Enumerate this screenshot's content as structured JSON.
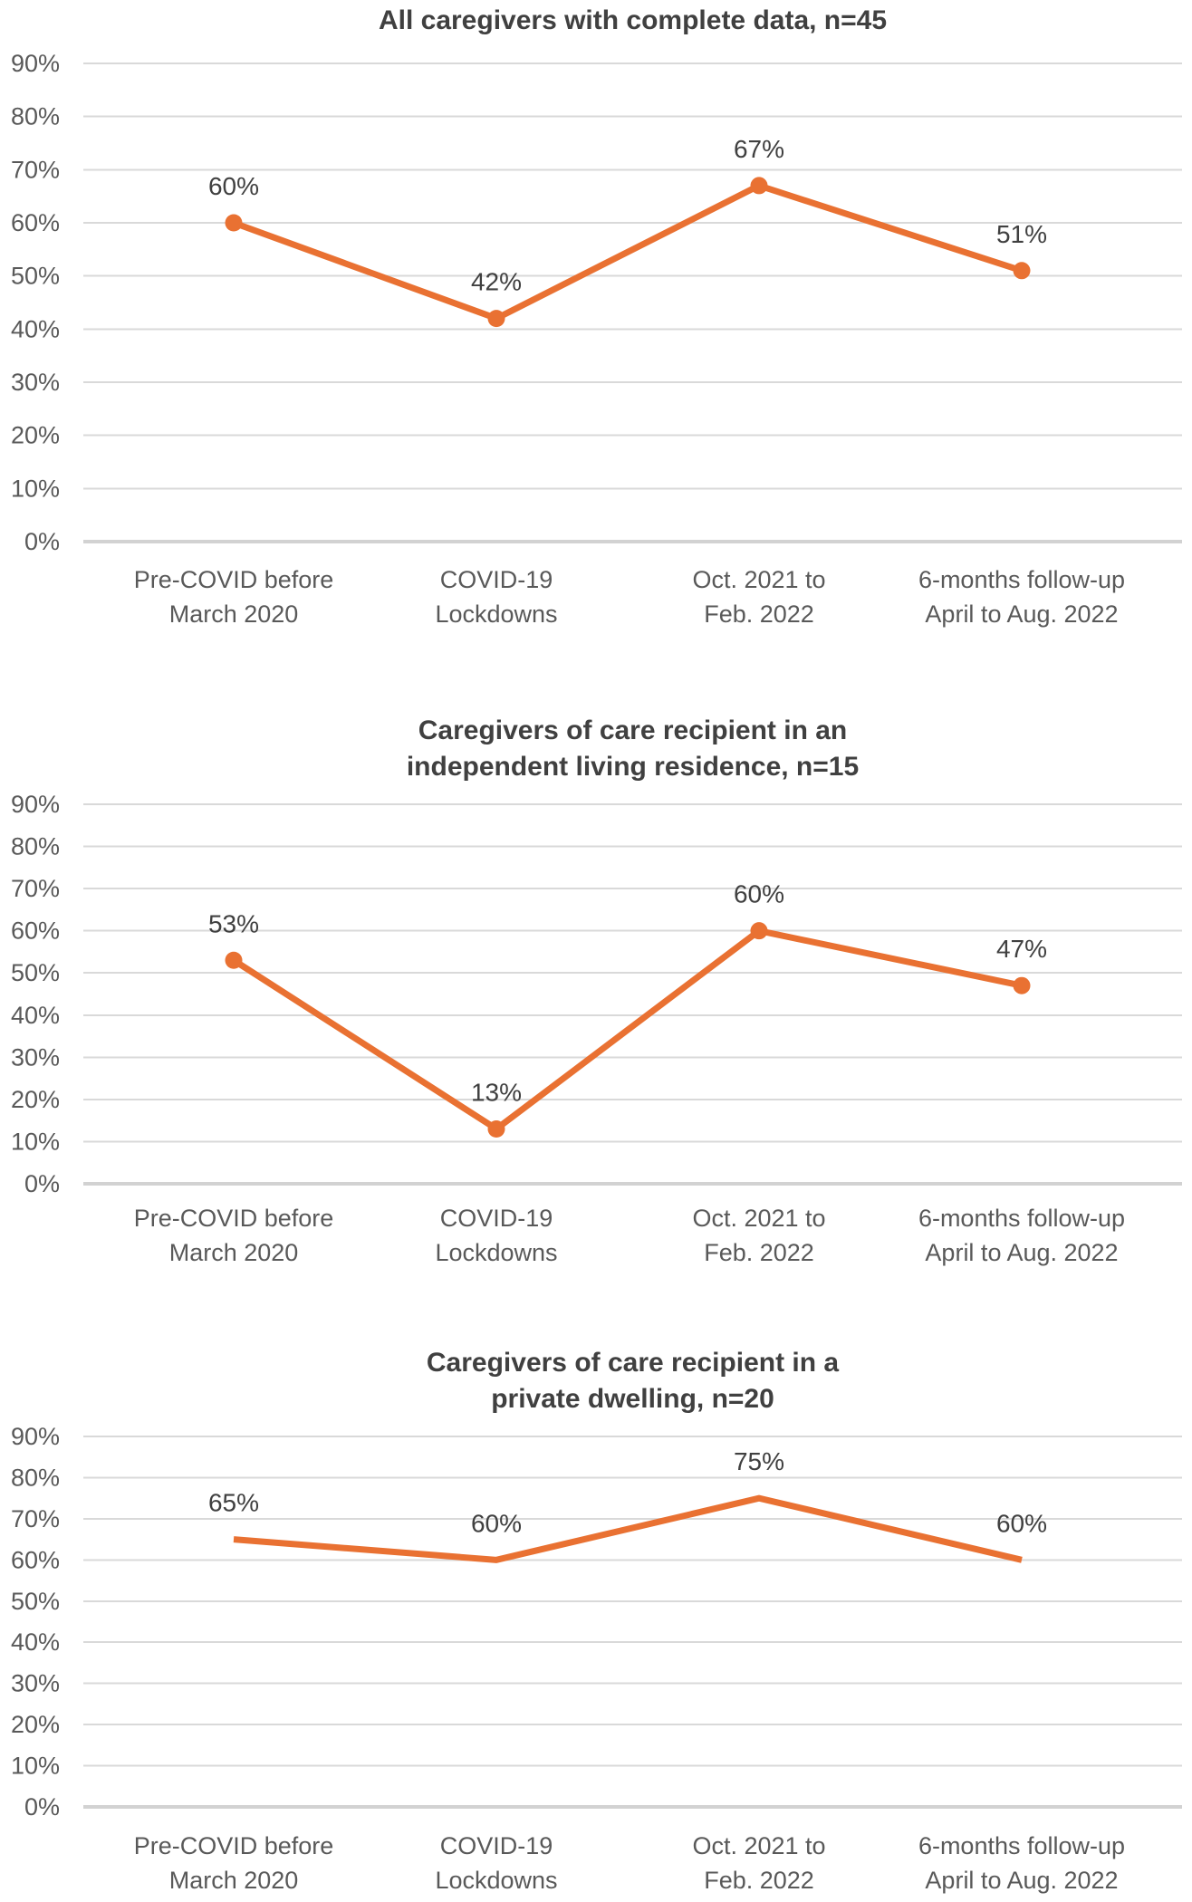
{
  "colors": {
    "series_orange": "#E97132",
    "gridline": "#D9D9D9",
    "axis_line": "#D2D2D2",
    "title_text": "#404040",
    "tick_text": "#595959",
    "data_label_text": "#404040",
    "background": "#FFFFFF"
  },
  "chart_data": [
    {
      "type": "line",
      "title": "All caregivers with complete data, n=45",
      "title_lines": [
        "All caregivers with complete data, n=45"
      ],
      "categories": [
        "Pre-COVID before March 2020",
        "COVID-19 Lockdowns",
        "Oct. 2021 to Feb. 2022",
        "6-months follow-up April to Aug. 2022"
      ],
      "category_lines": [
        [
          "Pre-COVID before",
          "March 2020"
        ],
        [
          "COVID-19",
          "Lockdowns"
        ],
        [
          "Oct. 2021 to",
          "Feb. 2022"
        ],
        [
          "6-months follow-up",
          "April to Aug. 2022"
        ]
      ],
      "values": [
        60,
        42,
        67,
        51
      ],
      "data_labels": [
        "60%",
        "42%",
        "67%",
        "51%"
      ],
      "y_ticks": [
        "90%",
        "80%",
        "70%",
        "60%",
        "50%",
        "40%",
        "30%",
        "20%",
        "10%",
        "0%"
      ],
      "ylim": [
        0,
        90
      ],
      "xlabel": "",
      "ylabel": "",
      "grid": true,
      "legend": "none",
      "markers": true
    },
    {
      "type": "line",
      "title": "Caregivers of care recipient in an independent living residence, n=15",
      "title_lines": [
        "Caregivers of care recipient in an",
        "independent living residence, n=15"
      ],
      "categories": [
        "Pre-COVID before March 2020",
        "COVID-19 Lockdowns",
        "Oct. 2021 to Feb. 2022",
        "6-months follow-up April to Aug. 2022"
      ],
      "category_lines": [
        [
          "Pre-COVID before",
          "March 2020"
        ],
        [
          "COVID-19",
          "Lockdowns"
        ],
        [
          "Oct. 2021 to",
          "Feb. 2022"
        ],
        [
          "6-months follow-up",
          "April to Aug. 2022"
        ]
      ],
      "values": [
        53,
        13,
        60,
        47
      ],
      "data_labels": [
        "53%",
        "13%",
        "60%",
        "47%"
      ],
      "y_ticks": [
        "90%",
        "80%",
        "70%",
        "60%",
        "50%",
        "40%",
        "30%",
        "20%",
        "10%",
        "0%"
      ],
      "ylim": [
        0,
        90
      ],
      "xlabel": "",
      "ylabel": "",
      "grid": true,
      "legend": "none",
      "markers": true
    },
    {
      "type": "line",
      "title": "Caregivers of care recipient in a private dwelling, n=20",
      "title_lines": [
        "Caregivers of care recipient in a",
        "private dwelling, n=20"
      ],
      "categories": [
        "Pre-COVID before March 2020",
        "COVID-19 Lockdowns",
        "Oct. 2021 to Feb. 2022",
        "6-months follow-up April to Aug. 2022"
      ],
      "category_lines": [
        [
          "Pre-COVID before",
          "March 2020"
        ],
        [
          "COVID-19",
          "Lockdowns"
        ],
        [
          "Oct. 2021 to",
          "Feb. 2022"
        ],
        [
          "6-months follow-up",
          "April to Aug. 2022"
        ]
      ],
      "values": [
        65,
        60,
        75,
        60
      ],
      "data_labels": [
        "65%",
        "60%",
        "75%",
        "60%"
      ],
      "y_ticks": [
        "90%",
        "80%",
        "70%",
        "60%",
        "50%",
        "40%",
        "30%",
        "20%",
        "10%",
        "0%"
      ],
      "ylim": [
        0,
        90
      ],
      "xlabel": "",
      "ylabel": "",
      "grid": true,
      "legend": "none",
      "markers": false
    }
  ]
}
